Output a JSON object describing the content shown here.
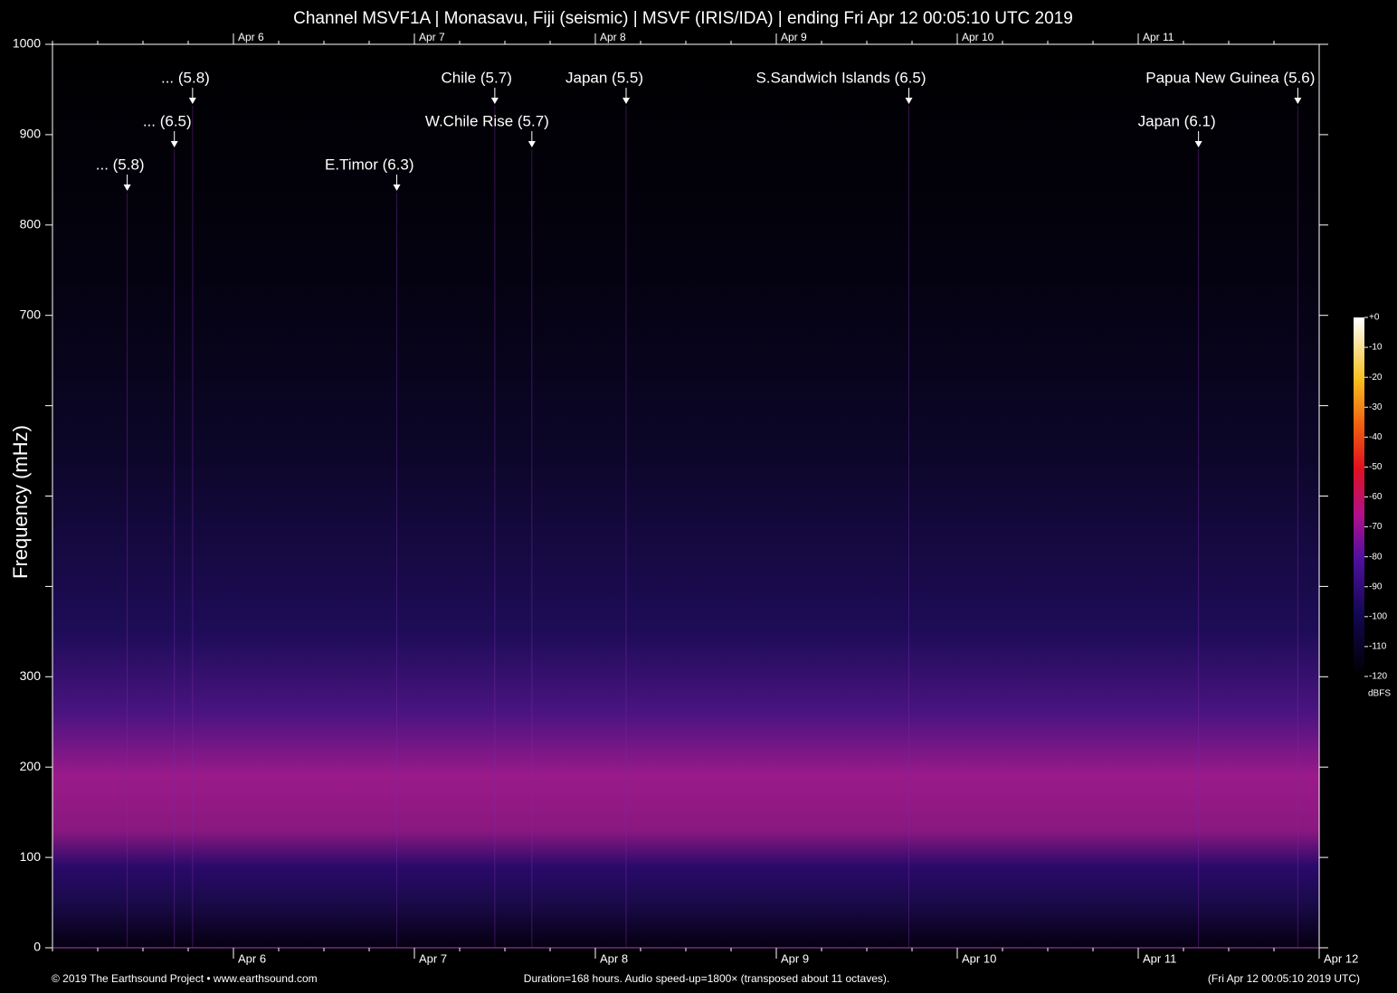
{
  "chart_data": {
    "type": "spectrogram",
    "title": "Channel MSVF1A | Monasavu, Fiji (seismic) | MSVF (IRIS/IDA) | ending Fri Apr 12 00:05:10 UTC 2019",
    "y_label": "Frequency (mHz)",
    "ylim": [
      0,
      1000
    ],
    "yticks": [
      0,
      100,
      200,
      300,
      700,
      800,
      900,
      1000
    ],
    "y_unlabeled_ticks": [
      400,
      500,
      600
    ],
    "xlim": [
      "2019-04-05T00:05:10Z",
      "2019-04-12T00:05:10Z"
    ],
    "xticks": [
      {
        "value": "2019-04-06T00:05:10Z",
        "label": "Apr 6"
      },
      {
        "value": "2019-04-07T00:05:10Z",
        "label": "Apr 7"
      },
      {
        "value": "2019-04-08T00:05:10Z",
        "label": "Apr 8"
      },
      {
        "value": "2019-04-09T00:05:10Z",
        "label": "Apr 9"
      },
      {
        "value": "2019-04-10T00:05:10Z",
        "label": "Apr 10"
      },
      {
        "value": "2019-04-11T00:05:10Z",
        "label": "Apr 11"
      },
      {
        "value": "2019-04-12T00:05:10Z",
        "label": "Apr 12"
      }
    ],
    "annotations": [
      {
        "text": "... (5.8)",
        "x": "2019-04-05T10:00:00Z"
      },
      {
        "text": "... (6.5)",
        "x": "2019-04-05T16:15:00Z"
      },
      {
        "text": "... (5.8)",
        "x": "2019-04-05T18:40:00Z"
      },
      {
        "text": "E.Timor (6.3)",
        "x": "2019-04-06T21:45:00Z"
      },
      {
        "text": "Chile (5.7)",
        "x": "2019-04-07T10:45:00Z"
      },
      {
        "text": "W.Chile Rise (5.7)",
        "x": "2019-04-07T15:40:00Z"
      },
      {
        "text": "Japan (5.5)",
        "x": "2019-04-08T04:10:00Z"
      },
      {
        "text": "S.Sandwich Islands (6.5)",
        "x": "2019-04-09T17:40:00Z"
      },
      {
        "text": "Japan (6.1)",
        "x": "2019-04-11T08:05:00Z"
      },
      {
        "text": "Papua New Guinea (5.6)",
        "x": "2019-04-11T21:15:00Z"
      }
    ],
    "colorbar": {
      "label": "dBFS",
      "lim": [
        -120,
        0
      ],
      "ticks": [
        {
          "value": 0,
          "label": "+0"
        },
        -10,
        -20,
        -30,
        -40,
        -50,
        -60,
        -70,
        -80,
        -90,
        -100,
        -110,
        -120
      ]
    },
    "footer_left": "© 2019 The Earthsound Project • www.earthsound.com",
    "footer_center": "Duration=168 hours. Audio speed-up=1800× (transposed about 11 octaves).",
    "footer_right": "(Fri Apr 12 00:05:10 2019 UTC)"
  }
}
